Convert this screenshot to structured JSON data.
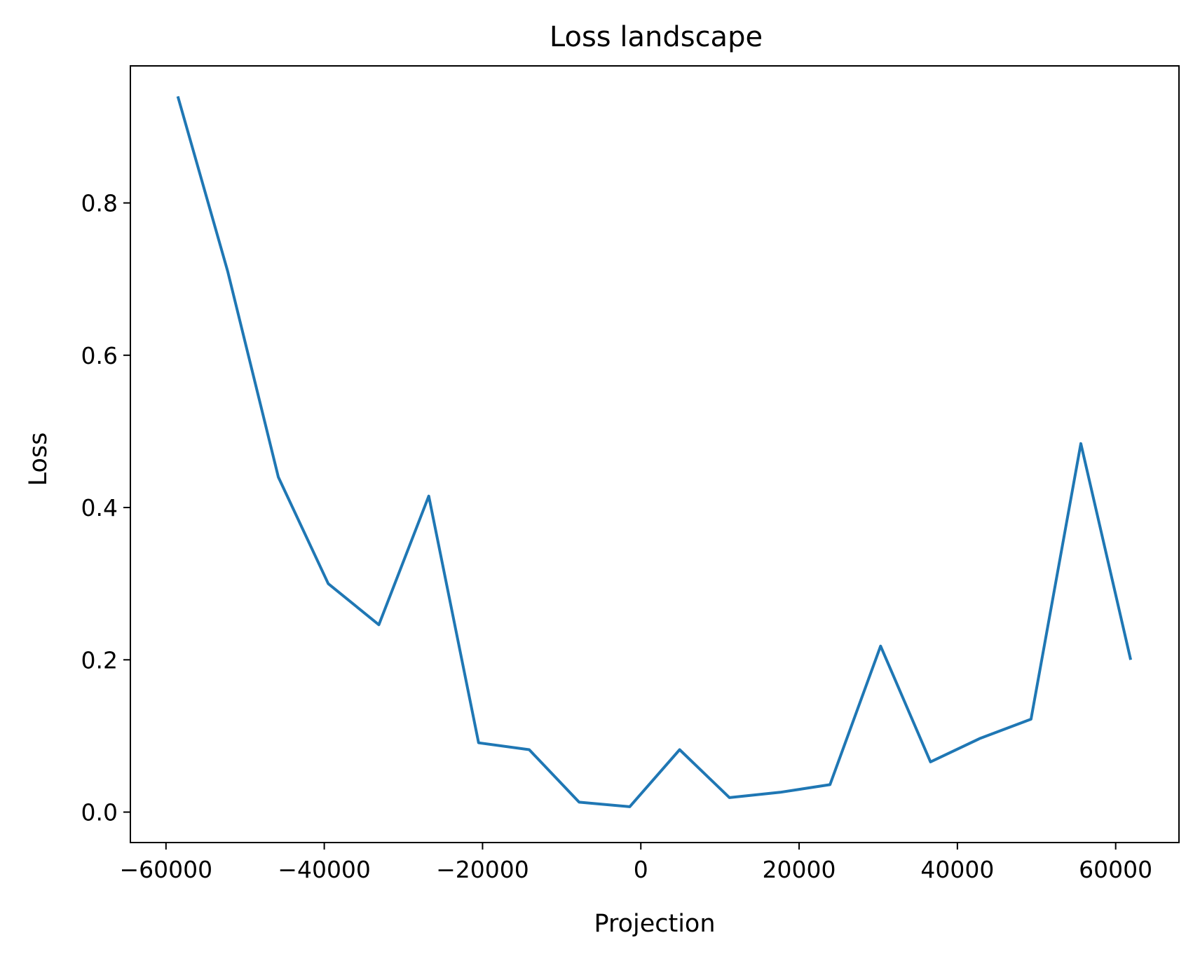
{
  "chart_data": {
    "type": "line",
    "title": "Loss landscape",
    "xlabel": "Projection",
    "ylabel": "Loss",
    "xlim": [
      -64500,
      68000
    ],
    "ylim": [
      -0.04,
      0.98
    ],
    "grid": false,
    "xticks": [
      {
        "value": -60000,
        "label": "−60000"
      },
      {
        "value": -40000,
        "label": "−40000"
      },
      {
        "value": -20000,
        "label": "−20000"
      },
      {
        "value": 0,
        "label": "0"
      },
      {
        "value": 20000,
        "label": "20000"
      },
      {
        "value": 40000,
        "label": "40000"
      },
      {
        "value": 60000,
        "label": "60000"
      }
    ],
    "yticks": [
      {
        "value": 0.0,
        "label": "0.0"
      },
      {
        "value": 0.2,
        "label": "0.2"
      },
      {
        "value": 0.4,
        "label": "0.4"
      },
      {
        "value": 0.6,
        "label": "0.6"
      },
      {
        "value": 0.8,
        "label": "0.8"
      }
    ],
    "series": [
      {
        "color": "#1f77b4",
        "x": [
          -58500,
          -52200,
          -45800,
          -39500,
          -33100,
          -26800,
          -20500,
          -14100,
          -7800,
          -1400,
          4900,
          11200,
          17600,
          23900,
          30300,
          36600,
          42900,
          49300,
          55600,
          61900
        ],
        "y": [
          0.94,
          0.71,
          0.44,
          0.3,
          0.246,
          0.415,
          0.091,
          0.082,
          0.013,
          0.007,
          0.082,
          0.019,
          0.026,
          0.036,
          0.218,
          0.066,
          0.097,
          0.122,
          0.484,
          0.2
        ]
      }
    ]
  }
}
